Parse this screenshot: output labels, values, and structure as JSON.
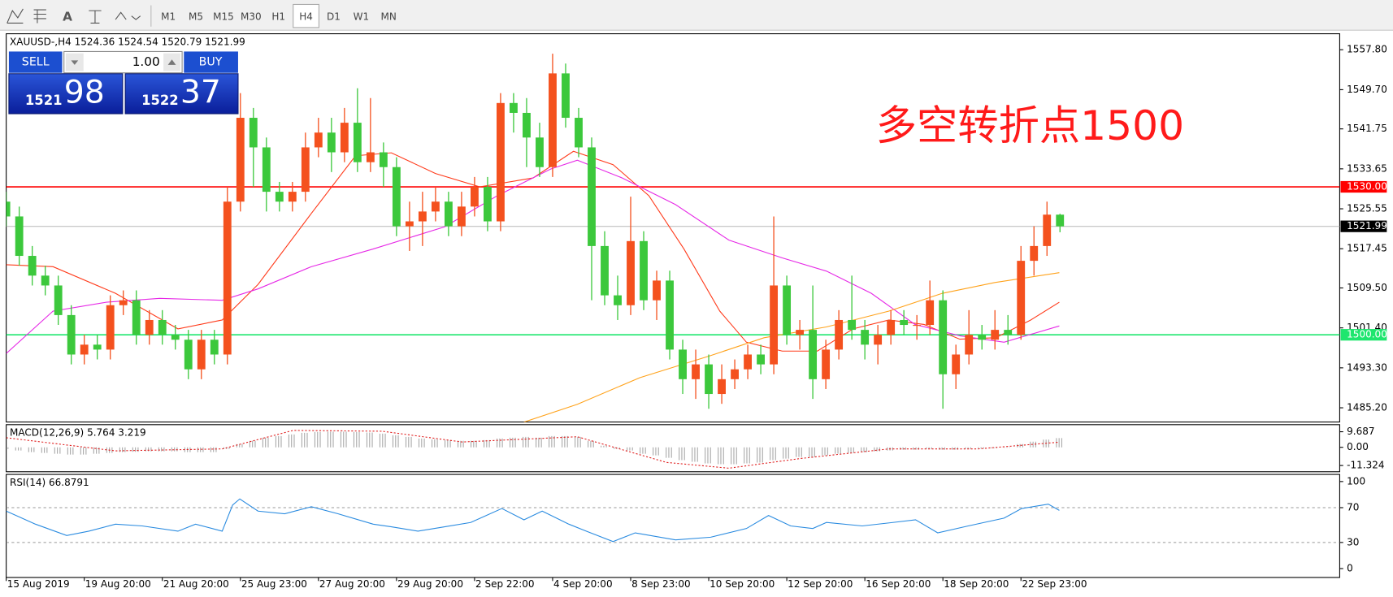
{
  "toolbar": {
    "text_tool": "A",
    "timeframes": [
      "M1",
      "M5",
      "M15",
      "M30",
      "H1",
      "H4",
      "D1",
      "W1",
      "MN"
    ],
    "active": "H4"
  },
  "trade_panel": {
    "sell": "SELL",
    "buy": "BUY",
    "lot": "1.00",
    "bid_big": "1521",
    "bid_small": "98",
    "ask_big": "1522",
    "ask_small": "37"
  },
  "chart_data": [
    {
      "type": "candlestick",
      "symbol": "XAUUSD-,H4",
      "annotation": "多空转折点1500",
      "up_color": "#f4511e",
      "down_color": "#3cc83c",
      "xlim": [
        0,
        205
      ],
      "ylim": [
        1482.32,
        1561.04
      ],
      "yticks": [
        {
          "value": 1557.8,
          "label": "1557.80"
        },
        {
          "value": 1549.7,
          "label": "1549.70"
        },
        {
          "value": 1541.75,
          "label": "1541.75"
        },
        {
          "value": 1533.65,
          "label": "1533.65"
        },
        {
          "value": 1525.55,
          "label": "1525.55"
        },
        {
          "value": 1517.45,
          "label": "1517.45"
        },
        {
          "value": 1509.5,
          "label": "1509.50"
        },
        {
          "value": 1501.4,
          "label": "1501.40"
        },
        {
          "value": 1493.3,
          "label": "1493.30"
        },
        {
          "value": 1485.2,
          "label": "1485.20"
        }
      ],
      "x": [
        0,
        2,
        4,
        6,
        8,
        10,
        12,
        14,
        16,
        18,
        20,
        22,
        24,
        26,
        28,
        30,
        32,
        34,
        36,
        38,
        40,
        42,
        44,
        46,
        48,
        50,
        52,
        54,
        56,
        58,
        60,
        62,
        64,
        66,
        68,
        70,
        72,
        74,
        76,
        78,
        80,
        82,
        84,
        86,
        88,
        90,
        92,
        94,
        96,
        98,
        100,
        102,
        104,
        106,
        108,
        110,
        112,
        114,
        116,
        118,
        120,
        122,
        124,
        126,
        128,
        130,
        132,
        134,
        136,
        138,
        140,
        142,
        144,
        146,
        148,
        150,
        152,
        154,
        156,
        158,
        160,
        162
      ],
      "open": [
        1527,
        1524,
        1516,
        1512,
        1510,
        1504,
        1496,
        1498,
        1497,
        1506,
        1507,
        1500,
        1503,
        1500,
        1499,
        1493,
        1499,
        1496,
        1527,
        1544,
        1538,
        1529,
        1527,
        1529,
        1538,
        1541,
        1537,
        1543,
        1535,
        1537,
        1534,
        1522,
        1523,
        1525,
        1527,
        1522,
        1526,
        1530,
        1523,
        1547,
        1545,
        1540,
        1534,
        1553,
        1544,
        1538,
        1518,
        1508,
        1506,
        1519,
        1507,
        1511,
        1497,
        1491,
        1494,
        1488,
        1491,
        1493,
        1496,
        1494,
        1510,
        1500,
        1501,
        1491,
        1497,
        1503,
        1501,
        1498,
        1500,
        1503,
        1502,
        1502,
        1507,
        1492,
        1496,
        1500,
        1499,
        1501,
        1500,
        1515,
        1518,
        1524.36
      ],
      "high": [
        1529,
        1526,
        1518,
        1514,
        1512,
        1506,
        1500,
        1500,
        1508,
        1509,
        1509,
        1505,
        1505,
        1502,
        1501,
        1501,
        1501,
        1530,
        1549,
        1546,
        1540,
        1531,
        1531,
        1541,
        1544,
        1544,
        1546,
        1550,
        1548,
        1539,
        1536,
        1527,
        1529,
        1530,
        1529,
        1529,
        1532,
        1532,
        1549,
        1549,
        1548,
        1543,
        1557,
        1555,
        1546,
        1540,
        1521,
        1512,
        1528,
        1521,
        1513,
        1513,
        1499,
        1497,
        1496,
        1494,
        1495,
        1498,
        1498,
        1524,
        1512,
        1503,
        1510,
        1499,
        1505,
        1512,
        1503,
        1502,
        1505,
        1505,
        1504,
        1511,
        1509,
        1498,
        1505,
        1502,
        1505,
        1504,
        1518,
        1522,
        1527,
        1524.54
      ],
      "low": [
        1522,
        1514,
        1510,
        1508,
        1502,
        1494,
        1494,
        1495,
        1495,
        1504,
        1498,
        1498,
        1498,
        1497,
        1491,
        1491,
        1494,
        1494,
        1525,
        1530,
        1525,
        1525,
        1525,
        1527,
        1536,
        1533,
        1535,
        1533,
        1533,
        1530,
        1520,
        1517,
        1518,
        1523,
        1520,
        1520,
        1524,
        1521,
        1521,
        1541,
        1534,
        1532,
        1532,
        1542,
        1536,
        1507,
        1506,
        1503,
        1504,
        1505,
        1503,
        1495,
        1488,
        1487,
        1485,
        1486,
        1489,
        1491,
        1492,
        1492,
        1498,
        1497,
        1487,
        1489,
        1495,
        1499,
        1495,
        1494,
        1498,
        1500,
        1499,
        1500,
        1485,
        1489,
        1494,
        1497,
        1497,
        1498,
        1499,
        1512,
        1516,
        1520.79
      ],
      "close": [
        1524,
        1516,
        1512,
        1510,
        1504,
        1496,
        1498,
        1497,
        1506,
        1507,
        1500,
        1503,
        1500,
        1499,
        1493,
        1499,
        1496,
        1527,
        1544,
        1538,
        1529,
        1527,
        1529,
        1538,
        1541,
        1537,
        1543,
        1535,
        1537,
        1534,
        1522,
        1523,
        1525,
        1527,
        1522,
        1526,
        1530,
        1523,
        1547,
        1545,
        1540,
        1534,
        1553,
        1544,
        1538,
        1518,
        1508,
        1506,
        1519,
        1507,
        1511,
        1497,
        1491,
        1494,
        1488,
        1491,
        1493,
        1496,
        1494,
        1510,
        1500,
        1501,
        1491,
        1497,
        1503,
        1501,
        1498,
        1500,
        1503,
        1502,
        1502,
        1507,
        1492,
        1496,
        1500,
        1499,
        1501,
        1500,
        1515,
        1518,
        1524.36,
        1521.99
      ],
      "overlays": [
        {
          "color": "#ff3a1a",
          "x": [
            0,
            7.2,
            16.8,
            26.4,
            33.2,
            38.7,
            46.9,
            53.7,
            59.2,
            66.0,
            72.8,
            81.0,
            87.2,
            93.3,
            98.8,
            104.2,
            109.7,
            113.8,
            119.3,
            124.7,
            130.2,
            135.7,
            141.1,
            146.6,
            152.1,
            157.5,
            161.9
          ],
          "values": [
            1514.2,
            1513.8,
            1508.4,
            1501.2,
            1503.0,
            1510.2,
            1524.6,
            1536.3,
            1536.9,
            1532.7,
            1530.0,
            1531.8,
            1537.2,
            1534.5,
            1528.2,
            1517.4,
            1504.8,
            1498.5,
            1496.7,
            1496.7,
            1501.2,
            1503.0,
            1502.1,
            1499.1,
            1499.4,
            1503.0,
            1506.6
          ]
        },
        {
          "color": "#e628e6",
          "x": [
            0,
            7.2,
            15.4,
            23.6,
            33.2,
            38.7,
            46.9,
            56.4,
            67.4,
            75.5,
            83.7,
            87.8,
            94.7,
            102.9,
            111.1,
            119.3,
            126.1,
            133.0,
            139.7,
            146.6,
            153.4,
            161.9
          ],
          "values": [
            1496.2,
            1504.8,
            1506.6,
            1507.4,
            1507.0,
            1509.3,
            1513.8,
            1517.4,
            1521.9,
            1528.2,
            1533.6,
            1535.4,
            1531.8,
            1526.4,
            1519.2,
            1515.6,
            1512.9,
            1508.4,
            1502.1,
            1499.8,
            1498.5,
            1501.8
          ]
        },
        {
          "color": "#ffa21a",
          "x": [
            79.6,
            87.8,
            97.4,
            108.3,
            116.5,
            126.1,
            135.7,
            143.9,
            152.0,
            161.9
          ],
          "values": [
            1482.3,
            1485.9,
            1491.3,
            1495.8,
            1499.4,
            1501.6,
            1504.8,
            1508.4,
            1510.6,
            1512.6
          ]
        }
      ],
      "hlines": [
        {
          "value": 1530,
          "label": "1530.00",
          "color": "#ff0000",
          "label_color": "#ff0000"
        },
        {
          "value": 1500,
          "label": "1500.00",
          "color": "#1ee66e",
          "label_color": "#1ee66e"
        },
        {
          "value": 1521.99,
          "label": "1521.99",
          "color": "#c0c0c0",
          "label_color": "#000000"
        }
      ]
    },
    {
      "type": "macd",
      "title": "MACD(12,26,9)",
      "xlim": [
        0,
        205
      ],
      "ylim": [
        -15.2,
        14.11
      ],
      "yticks": [
        9.687,
        {
          "value": 0,
          "label": "0.00"
        },
        -11.324
      ],
      "x": [
        0,
        2,
        4,
        6,
        8,
        10,
        12,
        14,
        16,
        18,
        20,
        22,
        24,
        26,
        28,
        30,
        32,
        34,
        36,
        38,
        40,
        42,
        44,
        46,
        48,
        50,
        52,
        54,
        56,
        58,
        60,
        62,
        64,
        66,
        68,
        70,
        72,
        74,
        76,
        78,
        80,
        82,
        84,
        86,
        88,
        90,
        92,
        94,
        96,
        98,
        100,
        102,
        104,
        106,
        108,
        110,
        112,
        114,
        116,
        118,
        120,
        122,
        124,
        126,
        128,
        130,
        132,
        134,
        136,
        138,
        140,
        142,
        144,
        146,
        148,
        150,
        152,
        154,
        156,
        158,
        160,
        162
      ],
      "histogram": [
        -1,
        -2,
        -3,
        -3.5,
        -4,
        -4.5,
        -4.5,
        -4,
        -3.5,
        -3,
        -2.8,
        -2.5,
        -2.5,
        -2.5,
        -3,
        -3,
        -3,
        -1,
        2,
        4,
        6,
        7,
        8,
        9,
        9.5,
        9.7,
        9.7,
        9.5,
        9.2,
        8.5,
        7.5,
        6.5,
        5.5,
        5,
        4.5,
        4,
        4,
        4.5,
        5.5,
        6,
        6.5,
        6,
        7,
        7,
        6.5,
        4,
        1,
        -1,
        -2,
        -4,
        -5,
        -6.5,
        -8,
        -9,
        -10,
        -10.5,
        -10.5,
        -10,
        -9.5,
        -8,
        -7,
        -6,
        -6,
        -5,
        -4,
        -3.5,
        -3,
        -2.5,
        -2,
        -1.5,
        -1.5,
        -1,
        -1.5,
        -1.5,
        -1,
        -0.8,
        -0.5,
        -0.3,
        2,
        3.5,
        4.8,
        5.764
      ],
      "histogram_color": "#a8a8a8",
      "signal_color": "#e02020",
      "signal_x": [
        0,
        16.8,
        33.2,
        44.1,
        57.8,
        70.1,
        87.8,
        101.5,
        111.1,
        122.0,
        135.7,
        149.4,
        161.9
      ],
      "signal": [
        6,
        -2.2,
        -1,
        10.5,
        10,
        3.3,
        6.6,
        -9.4,
        -13,
        -7,
        -1,
        -1,
        3.219
      ]
    },
    {
      "type": "line",
      "title": "RSI(14)",
      "xlim": [
        0,
        205
      ],
      "ylim": [
        -10.2,
        108.2
      ],
      "yticks": [
        100,
        70,
        30,
        0
      ],
      "levels": [
        70,
        30
      ],
      "color": "#2a8be0",
      "x": [
        0,
        4.5,
        9.3,
        12.7,
        16.8,
        20.9,
        26.4,
        29.1,
        33.2,
        34.8,
        35.9,
        38.7,
        42.8,
        46.9,
        51.0,
        56.4,
        59.2,
        63.3,
        67.4,
        71.4,
        76.2,
        79.6,
        82.4,
        86.5,
        89.2,
        93.3,
        96.7,
        102.9,
        108.3,
        113.8,
        117.2,
        120.6,
        124.0,
        126.1,
        131.6,
        136.3,
        139.8,
        143.2,
        147.9,
        153.4,
        156.1,
        160.2,
        161.9
      ],
      "values": [
        66,
        51,
        38,
        43,
        51,
        49,
        43,
        51,
        43,
        73,
        80,
        66,
        63,
        71,
        63,
        51,
        48,
        43,
        48,
        53,
        69,
        56,
        66,
        51,
        43,
        31,
        41,
        33,
        36,
        46,
        61,
        49,
        46,
        53,
        49,
        53,
        56,
        41,
        49,
        58,
        69,
        74,
        66.8791
      ],
      "xticks": [
        {
          "value": 0,
          "label": "15 Aug 2019"
        },
        {
          "value": 12,
          "label": "19 Aug 20:00"
        },
        {
          "value": 24,
          "label": "21 Aug 20:00"
        },
        {
          "value": 36,
          "label": "25 Aug 23:00"
        },
        {
          "value": 48,
          "label": "27 Aug 20:00"
        },
        {
          "value": 60,
          "label": "29 Aug 20:00"
        },
        {
          "value": 72,
          "label": "2 Sep 22:00"
        },
        {
          "value": 84,
          "label": "4 Sep 20:00"
        },
        {
          "value": 96,
          "label": "8 Sep 23:00"
        },
        {
          "value": 108,
          "label": "10 Sep 20:00"
        },
        {
          "value": 120,
          "label": "12 Sep 20:00"
        },
        {
          "value": 132,
          "label": "16 Sep 20:00"
        },
        {
          "value": 144,
          "label": "18 Sep 20:00"
        },
        {
          "value": 156,
          "label": "22 Sep 23:00"
        }
      ]
    }
  ]
}
